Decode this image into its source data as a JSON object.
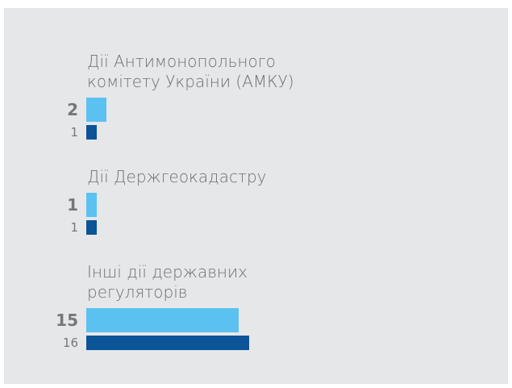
{
  "chart_data": {
    "type": "bar",
    "orientation": "horizontal",
    "categories": [
      "Дії Антимонопольного комітету України (АМКУ)",
      "Дії Держгеокадастру",
      "Інші дії державних регуляторів"
    ],
    "series": [
      {
        "color": "#5bc1f1",
        "values": [
          2,
          1,
          15
        ]
      },
      {
        "color": "#0b5497",
        "values": [
          1,
          1,
          16
        ]
      }
    ]
  }
}
